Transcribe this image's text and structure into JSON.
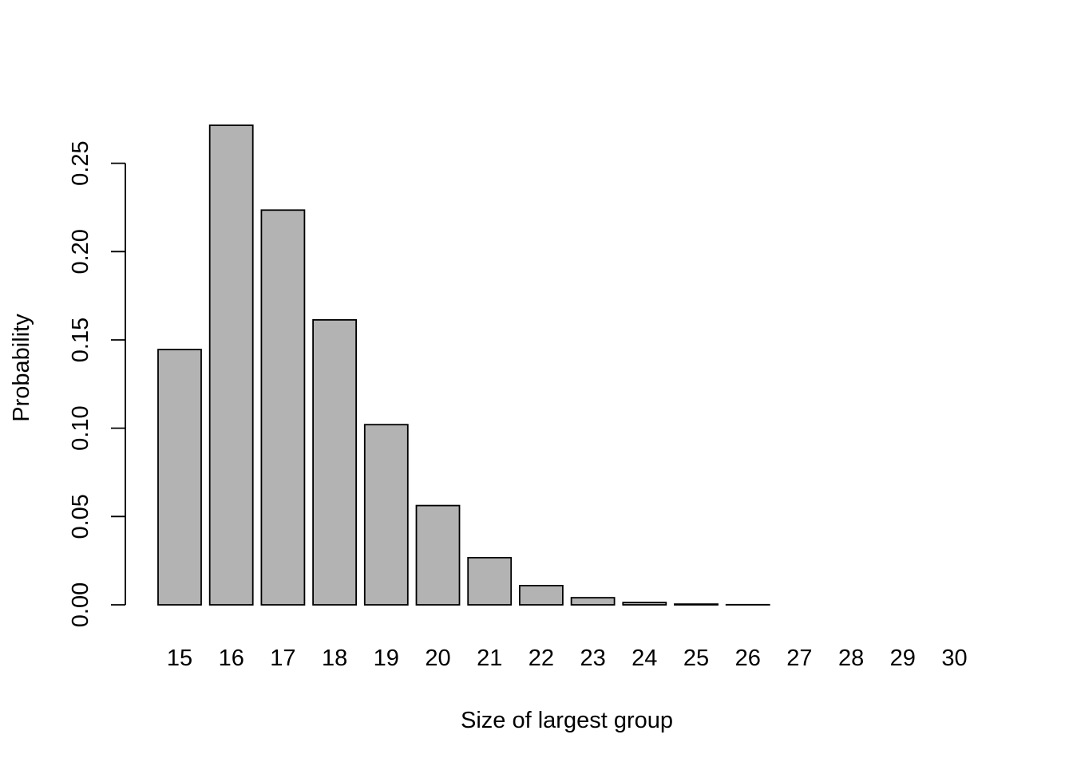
{
  "chart_data": {
    "type": "bar",
    "title": "",
    "xlabel": "Size of largest group",
    "ylabel": "Probability",
    "categories": [
      "15",
      "16",
      "17",
      "18",
      "19",
      "20",
      "21",
      "22",
      "23",
      "24",
      "25",
      "26",
      "27",
      "28",
      "29",
      "30"
    ],
    "values": [
      0.1445,
      0.2715,
      0.2235,
      0.1613,
      0.102,
      0.0562,
      0.0267,
      0.0109,
      0.004,
      0.0013,
      0.0004,
      0.0001,
      0.0,
      0.0,
      0.0,
      0.0
    ],
    "yticks": [
      0.0,
      0.05,
      0.1,
      0.15,
      0.2,
      0.25
    ],
    "ytick_labels": [
      "0.00",
      "0.05",
      "0.10",
      "0.15",
      "0.20",
      "0.25"
    ],
    "ylim": [
      0,
      0.2715
    ],
    "grid": false,
    "bar_color": "#b3b3b3",
    "edge_color": "#000000"
  }
}
